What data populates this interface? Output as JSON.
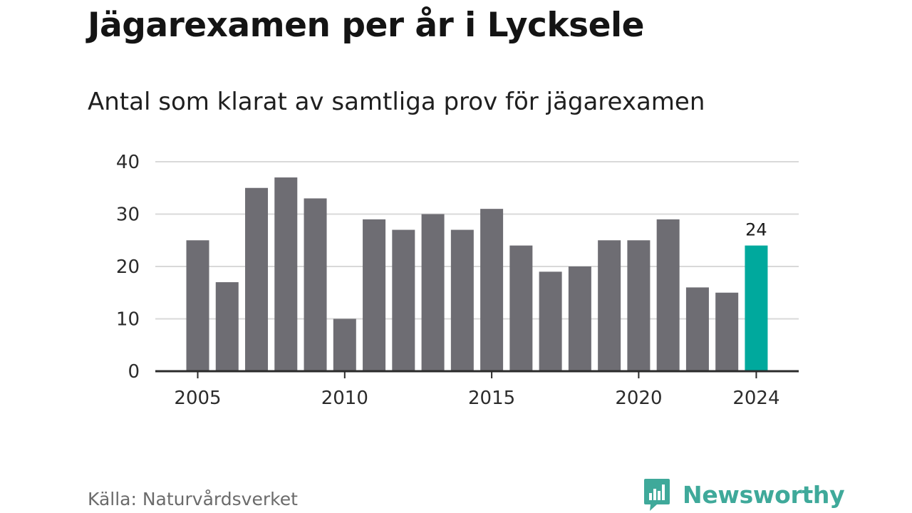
{
  "title": "Jägarexamen per år i Lycksele",
  "subtitle": "Antal som klarat av samtliga prov för jägarexamen",
  "source": "Källa: Naturvårdsverket",
  "brand": {
    "name": "Newsworthy",
    "color": "#3fa99a",
    "icon": "bar-chart-speech-bubble-icon"
  },
  "chart_data": {
    "type": "bar",
    "title": "Jägarexamen per år i Lycksele",
    "subtitle": "Antal som klarat av samtliga prov för jägarexamen",
    "xlabel": "",
    "ylabel": "",
    "categories": [
      2005,
      2006,
      2007,
      2008,
      2009,
      2010,
      2011,
      2012,
      2013,
      2014,
      2015,
      2016,
      2017,
      2018,
      2019,
      2020,
      2021,
      2022,
      2023,
      2024
    ],
    "values": [
      25,
      17,
      35,
      37,
      33,
      10,
      29,
      27,
      30,
      27,
      31,
      24,
      19,
      20,
      25,
      25,
      29,
      16,
      15,
      24
    ],
    "ylim": [
      0,
      40
    ],
    "yticks": [
      0,
      10,
      20,
      30,
      40
    ],
    "xticks": [
      2005,
      2010,
      2015,
      2020,
      2024
    ],
    "grid": true,
    "highlight": {
      "category": 2024,
      "value_label": "24"
    },
    "colors": {
      "bar": "#6e6d73",
      "highlight": "#00a99d",
      "grid": "#d9d9d9",
      "axis": "#2b2b2b"
    }
  }
}
